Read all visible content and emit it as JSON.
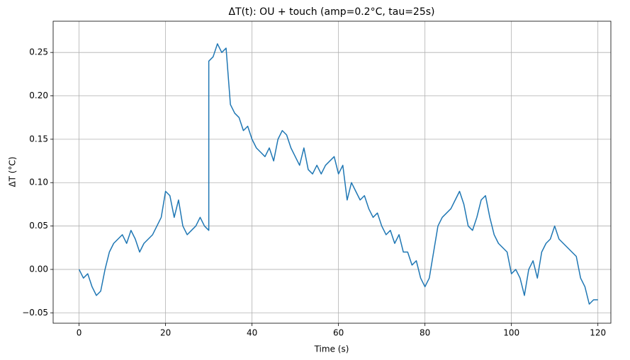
{
  "chart_data": {
    "type": "line",
    "title": "ΔT(t): OU + touch (amp=0.2°C, tau=25s)",
    "x_label": "Time (s)",
    "y_label": "ΔT (°C)",
    "x": [
      0,
      1,
      2,
      3,
      4,
      5,
      6,
      7,
      8,
      9,
      10,
      11,
      12,
      13,
      14,
      15,
      16,
      17,
      18,
      19,
      20,
      21,
      22,
      23,
      24,
      25,
      26,
      27,
      28,
      29,
      30,
      30,
      31,
      32,
      33,
      34,
      35,
      36,
      37,
      38,
      39,
      40,
      41,
      42,
      43,
      44,
      45,
      46,
      47,
      48,
      49,
      50,
      51,
      52,
      53,
      54,
      55,
      56,
      57,
      58,
      59,
      60,
      61,
      62,
      63,
      64,
      65,
      66,
      67,
      68,
      69,
      70,
      71,
      72,
      73,
      74,
      75,
      76,
      77,
      78,
      79,
      80,
      81,
      82,
      83,
      84,
      85,
      86,
      87,
      88,
      89,
      90,
      91,
      92,
      93,
      94,
      95,
      96,
      97,
      98,
      99,
      100,
      101,
      102,
      103,
      104,
      105,
      106,
      107,
      108,
      109,
      110,
      111,
      112,
      113,
      114,
      115,
      116,
      117,
      118,
      119,
      120
    ],
    "series": [
      {
        "name": "ΔT",
        "color": "#1f77b4",
        "values": [
          0.0,
          -0.01,
          -0.005,
          -0.02,
          -0.03,
          -0.025,
          0.0,
          0.02,
          0.03,
          0.035,
          0.04,
          0.03,
          0.045,
          0.035,
          0.02,
          0.03,
          0.035,
          0.04,
          0.05,
          0.06,
          0.09,
          0.085,
          0.06,
          0.08,
          0.05,
          0.04,
          0.045,
          0.05,
          0.06,
          0.05,
          0.045,
          0.24,
          0.245,
          0.26,
          0.25,
          0.255,
          0.19,
          0.18,
          0.175,
          0.16,
          0.165,
          0.15,
          0.14,
          0.135,
          0.13,
          0.14,
          0.125,
          0.15,
          0.16,
          0.155,
          0.14,
          0.13,
          0.12,
          0.14,
          0.115,
          0.11,
          0.12,
          0.11,
          0.12,
          0.125,
          0.13,
          0.11,
          0.12,
          0.08,
          0.1,
          0.09,
          0.08,
          0.085,
          0.07,
          0.06,
          0.065,
          0.05,
          0.04,
          0.045,
          0.03,
          0.04,
          0.02,
          0.02,
          0.005,
          0.01,
          -0.01,
          -0.02,
          -0.01,
          0.02,
          0.05,
          0.06,
          0.065,
          0.07,
          0.08,
          0.09,
          0.075,
          0.05,
          0.045,
          0.06,
          0.08,
          0.085,
          0.06,
          0.04,
          0.03,
          0.025,
          0.02,
          -0.005,
          0.0,
          -0.01,
          -0.03,
          0.0,
          0.01,
          -0.01,
          0.02,
          0.03,
          0.035,
          0.05,
          0.035,
          0.03,
          0.025,
          0.02,
          0.015,
          -0.01,
          -0.02,
          -0.04,
          -0.035,
          -0.035
        ]
      }
    ],
    "xlim": [
      -6,
      123
    ],
    "xticks": [
      0,
      20,
      40,
      60,
      80,
      100,
      120
    ],
    "ylim": [
      -0.062,
      0.286
    ],
    "yticks": [
      {
        "value": -0.05,
        "label": "−0.05"
      },
      {
        "value": 0,
        "label": "0.00"
      },
      0.05,
      {
        "value": 0.1,
        "label": "0.10"
      },
      0.15,
      {
        "value": 0.2,
        "label": "0.20"
      },
      0.25
    ],
    "grid": true
  }
}
